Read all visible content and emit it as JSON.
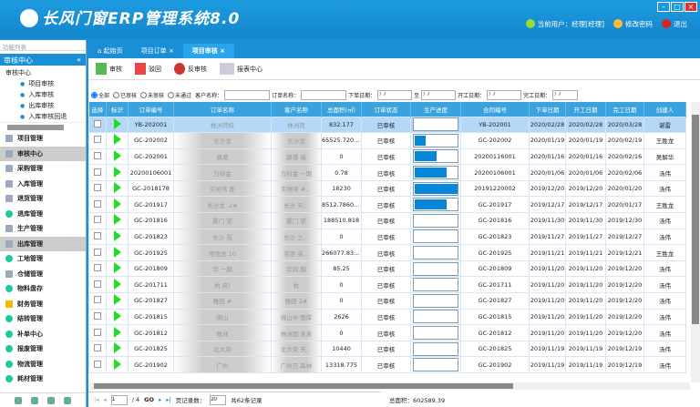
{
  "app": {
    "title": "长风门窗ERP管理系统8.0",
    "user": "当前用户：经理[经理]",
    "change_password": "修改密码",
    "logout": "退出",
    "window_buttons": [
      "–",
      "□",
      "×"
    ]
  },
  "sidebar": {
    "title": "功能列表",
    "section": "审核中心",
    "tree_root": "审核中心",
    "tree_items": [
      "项目审核",
      "入库审核",
      "出库审核",
      "入库审核回退"
    ],
    "menu": [
      {
        "label": "项目管理",
        "icon": "book"
      },
      {
        "label": "审核中心",
        "icon": "doc",
        "selected": true
      },
      {
        "label": "采购管理",
        "icon": "cart"
      },
      {
        "label": "入库管理",
        "icon": "cart-in"
      },
      {
        "label": "退货管理",
        "icon": "cart-return"
      },
      {
        "label": "退库管理",
        "icon": "dot"
      },
      {
        "label": "生产管理",
        "icon": "card"
      },
      {
        "label": "出库管理",
        "icon": "cart-out",
        "selected": true
      },
      {
        "label": "工地管理",
        "icon": "dot"
      },
      {
        "label": "仓储管理",
        "icon": "warehouse"
      },
      {
        "label": "物料盘存",
        "icon": "dot"
      },
      {
        "label": "财务管理",
        "icon": "folder"
      },
      {
        "label": "结转管理",
        "icon": "dot"
      },
      {
        "label": "补单中心",
        "icon": "dot"
      },
      {
        "label": "报废管理",
        "icon": "dot"
      },
      {
        "label": "物流管理",
        "icon": "dot"
      },
      {
        "label": "耗材管理",
        "icon": "dot"
      }
    ]
  },
  "tabs": [
    {
      "label": "起始页"
    },
    {
      "label": "项目订单"
    },
    {
      "label": "项目审核",
      "active": true
    }
  ],
  "toolbar": {
    "approve": "审核",
    "reject": "驳回",
    "unapprove": "反审核",
    "report": "报表中心"
  },
  "filter": {
    "options": [
      "全部",
      "已审核",
      "未审核",
      "未通过"
    ],
    "selected": "全部",
    "customer_label": "客户名称：",
    "order_label": "订单名称：",
    "order_date_label": "下单日期：",
    "to_label": "至",
    "start_date_label": "开工日期：",
    "finish_date_label": "完工日期：",
    "date_placeholder": " /  /"
  },
  "table": {
    "columns": [
      "选择",
      "标识",
      "订单编号",
      "订单名称",
      "客户名称",
      "总面积(㎡)",
      "订单状态",
      "生产进度",
      "合同编号",
      "下单日期",
      "开工日期",
      "完工日期",
      "创建人"
    ],
    "rows": [
      [
        "YB-202001",
        "株洲荷校",
        "株洲荷",
        "832.177",
        "已审核",
        0,
        "YB-202001",
        "2020/02/28",
        "2020/02/28",
        "2020/03/28",
        "谌雷"
      ],
      [
        "GC-202002",
        "长沙龙",
        "长沙龙",
        "65525.7200...",
        "已审核",
        0.25,
        "GC-202002",
        "2020/01/19",
        "2020/01/19",
        "2020/02/19",
        "王胜龙"
      ],
      [
        "GC-202001",
        "路港",
        "路港 墙",
        "0",
        "已审核",
        0.5,
        "20200116001",
        "2020/01/16",
        "2020/01/16",
        "2020/02/16",
        "吴解华"
      ],
      [
        "20200106001",
        "万科金",
        "万科金 一期",
        "0.78",
        "已审核",
        0.75,
        "20200106001",
        "2020/01/06",
        "2020/01/06",
        "2020/02/06",
        "汤伟"
      ],
      [
        "GC-2018178",
        "实地常 栋",
        "实地常 #...",
        "18230",
        "已审核",
        1,
        "20191220002",
        "2019/12/20",
        "2019/12/20",
        "2020/01/20",
        "汤伟"
      ],
      [
        "GC-201917",
        "长沙龙 -2#",
        "长沙 天...",
        "8512.78600...",
        "已审核",
        0.75,
        "GC-201917",
        "2019/12/17",
        "2019/12/17",
        "2020/01/17",
        "王胜龙"
      ],
      [
        "GC-201816",
        "厦门 望",
        "厦门 望",
        "188510.818",
        "已审核",
        0,
        "GC-201816",
        "2019/11/30",
        "2019/11/30",
        "2019/12/30",
        "汤伟"
      ],
      [
        "GC-201823",
        "长沙 苑",
        "长沙 之...",
        "0",
        "已审核",
        0,
        "GC-201823",
        "2019/11/27",
        "2019/11/27",
        "2019/12/27",
        "汤伟"
      ],
      [
        "GC-201925",
        "常德龙 10",
        "常德 苑...",
        "266077.835...",
        "已审核",
        0,
        "GC-201925",
        "2019/11/21",
        "2019/11/21",
        "2019/12/21",
        "王胜龙"
      ],
      [
        "GC-201809",
        "华 一期",
        "华润 期",
        "85.25",
        "已审核",
        0,
        "GC-201809",
        "2019/11/20",
        "2019/11/20",
        "2019/12/20",
        "汤伟"
      ],
      [
        "GC-201711",
        "杭 府)",
        "杭",
        "0",
        "已审核",
        0,
        "GC-201711",
        "2019/11/20",
        "2019/11/20",
        "2019/12/20",
        "汤伟"
      ],
      [
        "GC-201827",
        "雅园 #",
        "雅园 2#",
        "0",
        "已审核",
        0,
        "GC-201827",
        "2019/11/20",
        "2019/11/20",
        "2019/12/20",
        "汤伟"
      ],
      [
        "GC-201815",
        "佛山",
        "佛山中 图库",
        "2626",
        "已审核",
        0,
        "GC-201815",
        "2019/11/20",
        "2019/11/20",
        "2019/12/20",
        "汤伟"
      ],
      [
        "GC-201812",
        "株洲",
        "株洲国 未来",
        "0",
        "已审核",
        0,
        "GC-201812",
        "2019/11/20",
        "2019/11/20",
        "2019/12/20",
        "汤伟"
      ],
      [
        "GC-201825",
        "北大资",
        "北大资 天...",
        "10440",
        "已审核",
        0,
        "GC-201825",
        "2019/11/19",
        "2019/11/19",
        "2019/12/19",
        "汤伟"
      ],
      [
        "GC-201902",
        "广州",
        "广州万 森林",
        "13318.775",
        "已审核",
        0,
        "GC-201902",
        "2019/11/19",
        "2019/11/19",
        "2019/12/19",
        "汤伟"
      ]
    ]
  },
  "pager": {
    "page": "1",
    "total_pages": "/ 4",
    "go": "GO",
    "page_size_label": "页记录数：",
    "page_size": "20",
    "total": "共62条记录",
    "total_area": "总面积：602589.39"
  },
  "colors": {
    "header": "#1a8fd6",
    "grid_header": "#3aa2dc",
    "progress": "#0a86d8",
    "flag": "#22dd22"
  }
}
